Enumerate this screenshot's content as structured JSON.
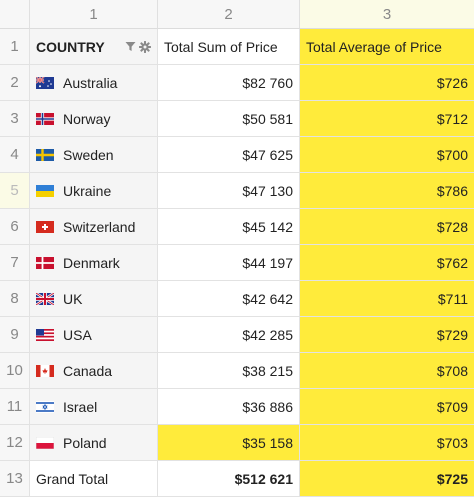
{
  "columns": {
    "index": [
      "1",
      "2",
      "3"
    ]
  },
  "header": {
    "row_number": "1",
    "country_label": "COUNTRY",
    "filter_icon": "filter-icon",
    "settings_icon": "gear-icon",
    "sum_label": "Total Sum of Price",
    "avg_label": "Total Average of Price"
  },
  "rows": [
    {
      "num": "2",
      "country": "Australia",
      "flag": "flag-australia",
      "sum": "$82 760",
      "avg": "$726"
    },
    {
      "num": "3",
      "country": "Norway",
      "flag": "flag-norway",
      "sum": "$50 581",
      "avg": "$712"
    },
    {
      "num": "4",
      "country": "Sweden",
      "flag": "flag-sweden",
      "sum": "$47 625",
      "avg": "$700"
    },
    {
      "num": "5",
      "country": "Ukraine",
      "flag": "flag-ukraine",
      "sum": "$47 130",
      "avg": "$786"
    },
    {
      "num": "6",
      "country": "Switzerland",
      "flag": "flag-switzerland",
      "sum": "$45 142",
      "avg": "$728"
    },
    {
      "num": "7",
      "country": "Denmark",
      "flag": "flag-denmark",
      "sum": "$44 197",
      "avg": "$762"
    },
    {
      "num": "8",
      "country": "UK",
      "flag": "flag-uk",
      "sum": "$42 642",
      "avg": "$711"
    },
    {
      "num": "9",
      "country": "USA",
      "flag": "flag-usa",
      "sum": "$42 285",
      "avg": "$729"
    },
    {
      "num": "10",
      "country": "Canada",
      "flag": "flag-canada",
      "sum": "$38 215",
      "avg": "$708"
    },
    {
      "num": "11",
      "country": "Israel",
      "flag": "flag-israel",
      "sum": "$36 886",
      "avg": "$709"
    },
    {
      "num": "12",
      "country": "Poland",
      "flag": "flag-poland",
      "sum": "$35 158",
      "avg": "$703"
    }
  ],
  "grand_total": {
    "num": "13",
    "label": "Grand Total",
    "sum": "$512 621",
    "avg": "$725"
  },
  "colors": {
    "highlight": "#ffeb3b",
    "selected_row_header": "#fbfbe6"
  }
}
